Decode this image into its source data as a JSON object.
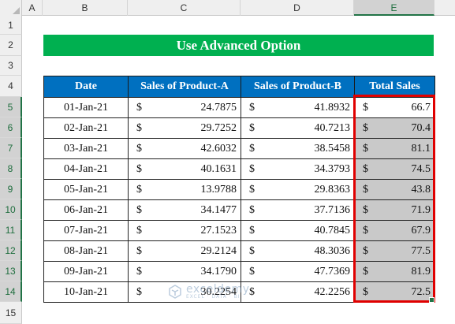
{
  "columns": [
    "A",
    "B",
    "C",
    "D",
    "E"
  ],
  "rows": [
    "1",
    "2",
    "3",
    "4",
    "5",
    "6",
    "7",
    "8",
    "9",
    "10",
    "11",
    "12",
    "13",
    "14",
    "15"
  ],
  "title": "Use Advanced Option",
  "table": {
    "headers": [
      "Date",
      "Sales of Product-A",
      "Sales of Product-B",
      "Total Sales"
    ],
    "currency": "$",
    "rows": [
      {
        "date": "01-Jan-21",
        "a": "24.7875",
        "b": "41.8932",
        "total": "66.7"
      },
      {
        "date": "02-Jan-21",
        "a": "29.7252",
        "b": "40.7213",
        "total": "70.4"
      },
      {
        "date": "03-Jan-21",
        "a": "42.6032",
        "b": "38.5458",
        "total": "81.1"
      },
      {
        "date": "04-Jan-21",
        "a": "40.1631",
        "b": "34.3793",
        "total": "74.5"
      },
      {
        "date": "05-Jan-21",
        "a": "13.9788",
        "b": "29.8363",
        "total": "43.8"
      },
      {
        "date": "06-Jan-21",
        "a": "34.1477",
        "b": "37.7136",
        "total": "71.9"
      },
      {
        "date": "07-Jan-21",
        "a": "27.1523",
        "b": "40.7845",
        "total": "67.9"
      },
      {
        "date": "08-Jan-21",
        "a": "29.2124",
        "b": "48.3036",
        "total": "77.5"
      },
      {
        "date": "09-Jan-21",
        "a": "34.1790",
        "b": "47.7369",
        "total": "81.9"
      },
      {
        "date": "10-Jan-21",
        "a": "30.2254",
        "b": "42.2256",
        "total": "72.5"
      }
    ]
  },
  "selected_column": "E",
  "selected_rows": [
    "5",
    "6",
    "7",
    "8",
    "9",
    "10",
    "11",
    "12",
    "13",
    "14"
  ],
  "colors": {
    "title_bg": "#00b050",
    "header_bg": "#0070c0",
    "selection_fill": "#c9c9c9",
    "highlight_border": "#e00000"
  },
  "watermark": {
    "name": "exceldemy",
    "tagline": "EXCEL · DATA · BI"
  }
}
